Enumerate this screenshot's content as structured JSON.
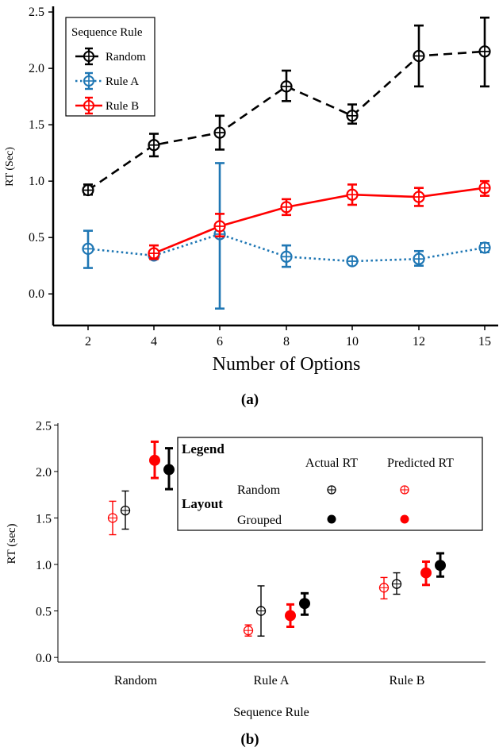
{
  "chart_data": [
    {
      "type": "line",
      "panel_label": "(a)",
      "xlabel": "Number of Options",
      "ylabel": "RT (Sec)",
      "x_ticks": [
        2,
        4,
        6,
        8,
        10,
        12,
        15
      ],
      "ylim": [
        -0.28,
        2.55
      ],
      "y_ticks": [
        "0.0",
        "0.5",
        "1.0",
        "1.5",
        "2.0",
        "2.5"
      ],
      "y_tick_values": [
        0.0,
        0.5,
        1.0,
        1.5,
        2.0,
        2.5
      ],
      "legend": {
        "title": "Sequence Rule",
        "placement": "top-left"
      },
      "series": [
        {
          "name": "Random",
          "color": "#000000",
          "dash": "dashed",
          "points": [
            {
              "x": 2,
              "y": 0.92,
              "lo": 0.88,
              "hi": 0.97
            },
            {
              "x": 4,
              "y": 1.32,
              "lo": 1.22,
              "hi": 1.42
            },
            {
              "x": 6,
              "y": 1.43,
              "lo": 1.28,
              "hi": 1.58
            },
            {
              "x": 8,
              "y": 1.84,
              "lo": 1.71,
              "hi": 1.98
            },
            {
              "x": 10,
              "y": 1.58,
              "lo": 1.51,
              "hi": 1.68
            },
            {
              "x": 12,
              "y": 2.11,
              "lo": 1.84,
              "hi": 2.38
            },
            {
              "x": 15,
              "y": 2.15,
              "lo": 1.84,
              "hi": 2.45
            }
          ]
        },
        {
          "name": "Rule A",
          "color": "#1f77b4",
          "dash": "dotted",
          "points": [
            {
              "x": 2,
              "y": 0.4,
              "lo": 0.23,
              "hi": 0.56
            },
            {
              "x": 4,
              "y": 0.34,
              "lo": 0.31,
              "hi": 0.38
            },
            {
              "x": 6,
              "y": 0.53,
              "lo": -0.13,
              "hi": 1.16
            },
            {
              "x": 8,
              "y": 0.33,
              "lo": 0.24,
              "hi": 0.43
            },
            {
              "x": 10,
              "y": 0.29,
              "lo": 0.27,
              "hi": 0.32
            },
            {
              "x": 12,
              "y": 0.31,
              "lo": 0.25,
              "hi": 0.38
            },
            {
              "x": 15,
              "y": 0.41,
              "lo": 0.37,
              "hi": 0.45
            }
          ]
        },
        {
          "name": "Rule B",
          "color": "#ff0000",
          "dash": "solid",
          "points": [
            {
              "x": 4,
              "y": 0.36,
              "lo": 0.31,
              "hi": 0.43
            },
            {
              "x": 6,
              "y": 0.6,
              "lo": 0.51,
              "hi": 0.71
            },
            {
              "x": 8,
              "y": 0.77,
              "lo": 0.7,
              "hi": 0.84
            },
            {
              "x": 10,
              "y": 0.88,
              "lo": 0.79,
              "hi": 0.97
            },
            {
              "x": 12,
              "y": 0.86,
              "lo": 0.78,
              "hi": 0.94
            },
            {
              "x": 15,
              "y": 0.94,
              "lo": 0.87,
              "hi": 1.0
            }
          ]
        }
      ]
    },
    {
      "type": "scatter",
      "panel_label": "(b)",
      "xlabel": "Sequence Rule",
      "ylabel": "RT (sec)",
      "categories": [
        "Random",
        "Rule A",
        "Rule B"
      ],
      "ylim": [
        -0.05,
        2.52
      ],
      "y_ticks": [
        "0.0",
        "0.5",
        "1.0",
        "1.5",
        "2.0",
        "2.5"
      ],
      "y_tick_values": [
        0.0,
        0.5,
        1.0,
        1.5,
        2.0,
        2.5
      ],
      "legend": {
        "title": "Legend",
        "row_header": "Layout",
        "col_actual": "Actual RT",
        "col_predicted": "Predicted RT",
        "row_random": "Random",
        "row_grouped": "Grouped",
        "placement": "top-right"
      },
      "series": [
        {
          "name": "Predicted RT, Random layout",
          "color": "#ff0000",
          "style": "open",
          "points": [
            {
              "category": "Random",
              "y": 1.5,
              "lo": 1.32,
              "hi": 1.68
            },
            {
              "category": "Rule A",
              "y": 0.29,
              "lo": 0.23,
              "hi": 0.35
            },
            {
              "category": "Rule B",
              "y": 0.75,
              "lo": 0.63,
              "hi": 0.86
            }
          ]
        },
        {
          "name": "Actual RT, Random layout",
          "color": "#000000",
          "style": "open",
          "points": [
            {
              "category": "Random",
              "y": 1.58,
              "lo": 1.38,
              "hi": 1.79
            },
            {
              "category": "Rule A",
              "y": 0.5,
              "lo": 0.23,
              "hi": 0.77
            },
            {
              "category": "Rule B",
              "y": 0.79,
              "lo": 0.68,
              "hi": 0.91
            }
          ]
        },
        {
          "name": "Predicted RT, Grouped layout",
          "color": "#ff0000",
          "style": "filled",
          "points": [
            {
              "category": "Random",
              "y": 2.12,
              "lo": 1.93,
              "hi": 2.32
            },
            {
              "category": "Rule A",
              "y": 0.45,
              "lo": 0.33,
              "hi": 0.57
            },
            {
              "category": "Rule B",
              "y": 0.91,
              "lo": 0.78,
              "hi": 1.03
            }
          ]
        },
        {
          "name": "Actual RT, Grouped layout",
          "color": "#000000",
          "style": "filled",
          "points": [
            {
              "category": "Random",
              "y": 2.02,
              "lo": 1.81,
              "hi": 2.25
            },
            {
              "category": "Rule A",
              "y": 0.58,
              "lo": 0.46,
              "hi": 0.69
            },
            {
              "category": "Rule B",
              "y": 0.99,
              "lo": 0.87,
              "hi": 1.12
            }
          ]
        }
      ]
    }
  ]
}
